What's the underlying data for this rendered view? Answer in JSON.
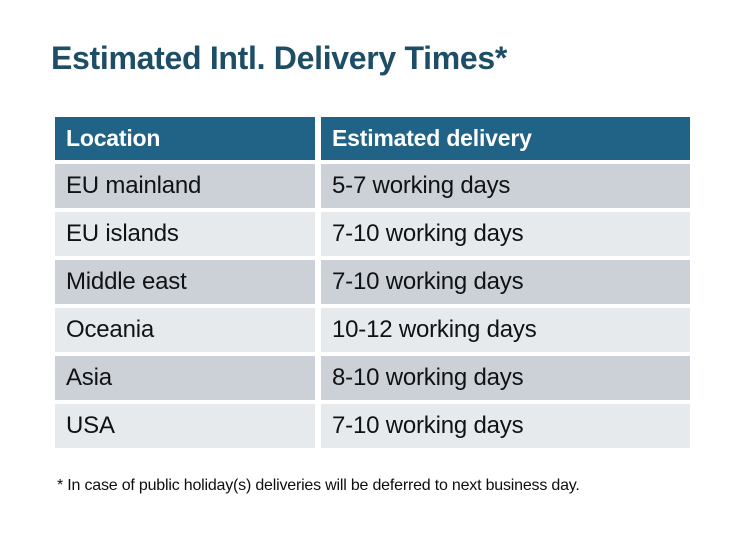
{
  "title": "Estimated Intl. Delivery Times*",
  "table": {
    "headers": [
      "Location",
      "Estimated delivery"
    ],
    "rows": [
      [
        "EU mainland",
        "5-7 working days"
      ],
      [
        "EU islands",
        "7-10 working days"
      ],
      [
        "Middle east",
        "7-10 working days"
      ],
      [
        "Oceania",
        "10-12 working days"
      ],
      [
        "Asia",
        "8-10 working days"
      ],
      [
        "USA",
        "7-10 working days"
      ]
    ]
  },
  "footnote": "* In case of public holiday(s) deliveries will be deferred to next business day.",
  "colors": {
    "background": "#ffffff",
    "title_text": "#1d4e66",
    "header_bg": "#206386",
    "header_text": "#ffffff",
    "row_dark_bg": "#ccd1d8",
    "row_light_bg": "#e7eaec",
    "body_text": "#101214"
  }
}
